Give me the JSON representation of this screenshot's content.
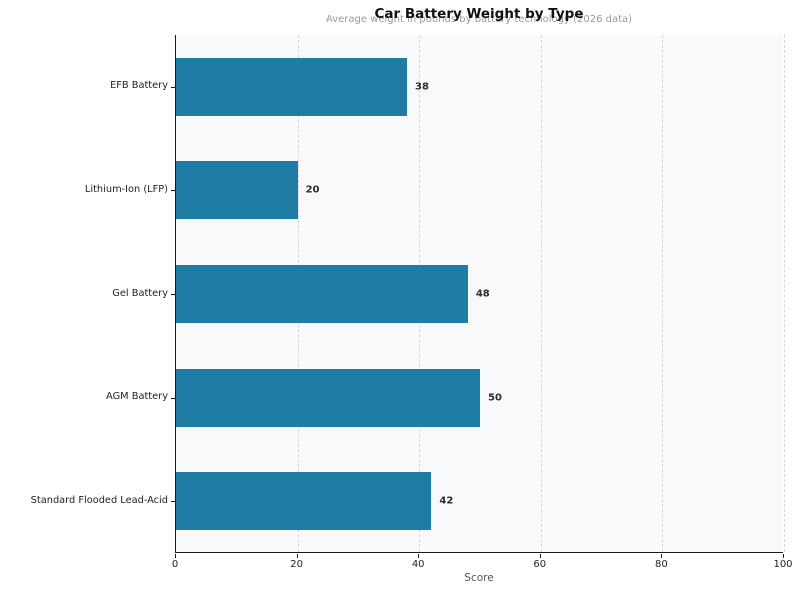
{
  "chart_data": {
    "type": "bar",
    "orientation": "horizontal",
    "title": "Car Battery Weight by Type",
    "subtitle": "Average weight in pounds by battery technology (2026 data)",
    "categories": [
      "EFB Battery",
      "Lithium-Ion (LFP)",
      "Gel Battery",
      "AGM Battery",
      "Standard Flooded Lead-Acid"
    ],
    "values": [
      38,
      20,
      48,
      50,
      42
    ],
    "xlabel": "Score",
    "ylabel": "",
    "xlim": [
      0,
      100
    ],
    "x_ticks": [
      0,
      20,
      40,
      60,
      80,
      100
    ],
    "grid": "vertical-dashed-lines",
    "legend": "none",
    "colors": {
      "bar": "#1f7ca4",
      "plot_background": "#f8f9fa",
      "figure_background": "#ffffff",
      "gridline": "#d4d7da",
      "spine": "#1a1a1a",
      "subtitle_text": "#9a9a9a",
      "tick_text": "#1f1f1f"
    }
  }
}
